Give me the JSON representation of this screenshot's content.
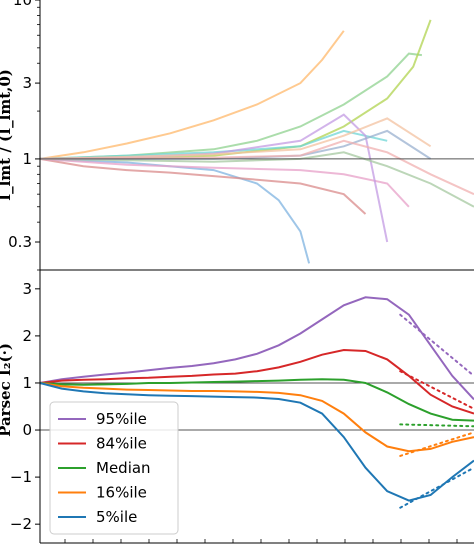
{
  "chart_data": [
    {
      "type": "line",
      "panel": "top",
      "yscale": "log",
      "ylim": [
        0.2,
        10
      ],
      "xlim": [
        0,
        1
      ],
      "yticks": [
        0.3,
        1,
        3,
        10
      ],
      "ytick_labels": [
        "0.3",
        "1",
        "3",
        "10"
      ],
      "ylabel": "I_lmt / (I_lmt,0)",
      "reference_line": 1,
      "note": "many overlapping individual trajectories (semi-transparent), all starting at 1",
      "series": [
        {
          "color": "#ffb86b",
          "x": [
            0,
            0.1,
            0.2,
            0.3,
            0.4,
            0.5,
            0.6,
            0.65,
            0.7
          ],
          "y": [
            1,
            1.1,
            1.25,
            1.45,
            1.75,
            2.2,
            3.0,
            4.2,
            6.4
          ]
        },
        {
          "color": "#8fd18f",
          "x": [
            0,
            0.2,
            0.4,
            0.5,
            0.6,
            0.7,
            0.8,
            0.85,
            0.88
          ],
          "y": [
            1,
            1.05,
            1.15,
            1.3,
            1.6,
            2.2,
            3.3,
            4.6,
            4.5
          ]
        },
        {
          "color": "#b0d34f",
          "x": [
            0,
            0.2,
            0.4,
            0.6,
            0.7,
            0.8,
            0.86,
            0.9
          ],
          "y": [
            1,
            1.0,
            1.05,
            1.2,
            1.6,
            2.4,
            3.8,
            7.5
          ]
        },
        {
          "color": "#7fb3e0",
          "x": [
            0,
            0.2,
            0.4,
            0.5,
            0.55,
            0.6,
            0.62
          ],
          "y": [
            1,
            0.95,
            0.85,
            0.7,
            0.55,
            0.35,
            0.22
          ]
        },
        {
          "color": "#d98b8b",
          "x": [
            0,
            0.1,
            0.2,
            0.3,
            0.4,
            0.5,
            0.6,
            0.7,
            0.75
          ],
          "y": [
            1,
            0.9,
            0.85,
            0.82,
            0.78,
            0.74,
            0.7,
            0.6,
            0.45
          ]
        },
        {
          "color": "#e7a0c8",
          "x": [
            0,
            0.2,
            0.4,
            0.6,
            0.7,
            0.8,
            0.85
          ],
          "y": [
            1,
            0.92,
            0.88,
            0.85,
            0.8,
            0.7,
            0.5
          ]
        },
        {
          "color": "#6fd6d6",
          "x": [
            0,
            0.2,
            0.4,
            0.6,
            0.7,
            0.8
          ],
          "y": [
            1,
            1.05,
            1.1,
            1.2,
            1.5,
            1.3
          ]
        },
        {
          "color": "#c39be3",
          "x": [
            0,
            0.2,
            0.4,
            0.6,
            0.7,
            0.75,
            0.8
          ],
          "y": [
            1,
            1.02,
            1.08,
            1.3,
            1.9,
            1.4,
            0.3
          ]
        },
        {
          "color": "#f3c2a0",
          "x": [
            0,
            0.2,
            0.4,
            0.6,
            0.7,
            0.8,
            0.9
          ],
          "y": [
            1,
            1.03,
            1.07,
            1.15,
            1.4,
            1.8,
            1.2
          ]
        },
        {
          "color": "#a6c8a0",
          "x": [
            0,
            0.2,
            0.4,
            0.6,
            0.7,
            0.8,
            0.9,
            1.0
          ],
          "y": [
            1,
            0.98,
            0.96,
            1.0,
            1.1,
            0.9,
            0.7,
            0.5
          ]
        },
        {
          "color": "#9ab0cf",
          "x": [
            0,
            0.2,
            0.4,
            0.6,
            0.7,
            0.8,
            0.9
          ],
          "y": [
            1,
            1.0,
            1.0,
            1.05,
            1.2,
            1.5,
            1.0
          ]
        },
        {
          "color": "#f0b0b0",
          "x": [
            0,
            0.2,
            0.4,
            0.6,
            0.7,
            0.8,
            0.9,
            1.0
          ],
          "y": [
            1,
            1.01,
            1.02,
            1.05,
            1.3,
            1.1,
            0.8,
            0.6
          ]
        }
      ]
    },
    {
      "type": "line",
      "panel": "bottom",
      "ylim": [
        -2.4,
        3.4
      ],
      "xlim": [
        0,
        1
      ],
      "yticks": [
        -2,
        -1,
        0,
        1,
        2,
        3
      ],
      "ytick_labels": [
        "−2",
        "−1",
        "0",
        "1",
        "2",
        "3"
      ],
      "ylabel": "Parsec I₂(·)",
      "reference_lines": [
        0,
        1
      ],
      "legend": {
        "location": "lower left",
        "entries": [
          "95%ile",
          "84%ile",
          "Median",
          "16%ile",
          "5%ile"
        ]
      },
      "x": [
        0,
        0.05,
        0.1,
        0.15,
        0.2,
        0.25,
        0.3,
        0.35,
        0.4,
        0.45,
        0.5,
        0.55,
        0.6,
        0.65,
        0.7,
        0.75,
        0.8,
        0.85,
        0.9,
        0.95,
        1.0
      ],
      "series": [
        {
          "name": "95%ile",
          "color": "#9467bd",
          "values": [
            1.0,
            1.08,
            1.13,
            1.18,
            1.22,
            1.27,
            1.32,
            1.36,
            1.42,
            1.5,
            1.62,
            1.8,
            2.05,
            2.35,
            2.65,
            2.82,
            2.78,
            2.45,
            1.8,
            1.15,
            0.65
          ]
        },
        {
          "name": "84%ile",
          "color": "#d62728",
          "values": [
            1.0,
            1.05,
            1.07,
            1.08,
            1.1,
            1.11,
            1.13,
            1.15,
            1.18,
            1.2,
            1.25,
            1.33,
            1.45,
            1.6,
            1.7,
            1.68,
            1.5,
            1.15,
            0.75,
            0.5,
            0.35
          ]
        },
        {
          "name": "Median",
          "color": "#2ca02c",
          "values": [
            1.0,
            0.97,
            0.96,
            0.97,
            0.98,
            1.0,
            1.0,
            1.01,
            1.02,
            1.03,
            1.04,
            1.05,
            1.07,
            1.08,
            1.07,
            1.0,
            0.8,
            0.55,
            0.35,
            0.22,
            0.2
          ]
        },
        {
          "name": "16%ile",
          "color": "#ff7f0e",
          "values": [
            1.0,
            0.93,
            0.9,
            0.88,
            0.86,
            0.85,
            0.84,
            0.83,
            0.83,
            0.82,
            0.81,
            0.79,
            0.74,
            0.62,
            0.35,
            -0.05,
            -0.35,
            -0.45,
            -0.4,
            -0.25,
            -0.15
          ]
        },
        {
          "name": "5%ile",
          "color": "#1f77b4",
          "values": [
            1.0,
            0.88,
            0.82,
            0.78,
            0.76,
            0.74,
            0.73,
            0.72,
            0.71,
            0.7,
            0.69,
            0.66,
            0.58,
            0.35,
            -0.15,
            -0.8,
            -1.3,
            -1.5,
            -1.38,
            -1.0,
            -0.65
          ]
        }
      ],
      "dotted_extrapolations": [
        {
          "color": "#9467bd",
          "x": [
            0.83,
            1.0
          ],
          "y": [
            2.45,
            1.15
          ]
        },
        {
          "color": "#d62728",
          "x": [
            0.83,
            1.0
          ],
          "y": [
            1.25,
            0.45
          ]
        },
        {
          "color": "#2ca02c",
          "x": [
            0.83,
            1.0
          ],
          "y": [
            0.12,
            0.08
          ]
        },
        {
          "color": "#ff7f0e",
          "x": [
            0.83,
            1.0
          ],
          "y": [
            -0.55,
            -0.05
          ]
        },
        {
          "color": "#1f77b4",
          "x": [
            0.83,
            1.0
          ],
          "y": [
            -1.65,
            -0.8
          ]
        }
      ]
    }
  ],
  "colors": {
    "axis": "#000000",
    "refline": "#555555"
  }
}
